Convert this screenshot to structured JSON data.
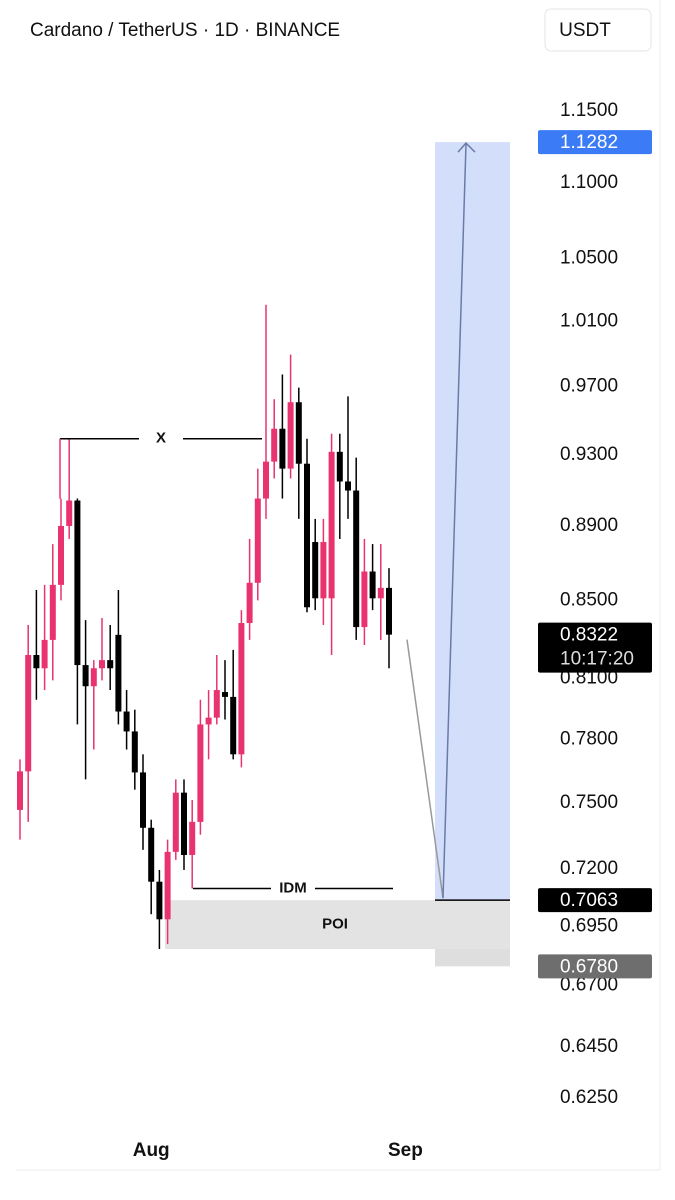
{
  "chart_data": {
    "type": "candlestick",
    "title": "Cardano / TetherUS · 1D · BINANCE",
    "quote_button": "USDT",
    "log_scale": true,
    "categories": [
      null,
      null,
      null,
      null,
      null,
      null,
      null,
      null,
      null,
      null,
      null,
      null,
      null,
      null,
      null,
      null,
      "Aug",
      null,
      null,
      null,
      null,
      null,
      null,
      null,
      null,
      null,
      null,
      null,
      null,
      null,
      null,
      null,
      null,
      null,
      null,
      null,
      null,
      null,
      null,
      null,
      null,
      null,
      null,
      null,
      null,
      null,
      null,
      "Sep"
    ],
    "up_color": "#e8336f",
    "down_color": "#000000",
    "candles": [
      [
        0.7468,
        0.7705,
        0.7332,
        0.7648
      ],
      [
        0.7648,
        0.8372,
        0.7413,
        0.8218
      ],
      [
        0.8218,
        0.8555,
        0.7994,
        0.8151
      ],
      [
        0.8151,
        0.8582,
        0.8042,
        0.8295
      ],
      [
        0.8295,
        0.8801,
        0.809,
        0.8582
      ],
      [
        0.8582,
        0.9052,
        0.85,
        0.89
      ],
      [
        0.89,
        0.9393,
        0.8829,
        0.9041
      ],
      [
        0.9041,
        0.9052,
        0.7873,
        0.8167
      ],
      [
        0.8167,
        0.8397,
        0.761,
        0.8061
      ],
      [
        0.8061,
        0.8192,
        0.7752,
        0.8151
      ],
      [
        0.8151,
        0.8408,
        0.809,
        0.8192
      ],
      [
        0.8192,
        0.8372,
        0.8042,
        0.8151
      ],
      [
        0.8321,
        0.8555,
        0.7873,
        0.7936
      ],
      [
        0.7936,
        0.8042,
        0.7752,
        0.7839
      ],
      [
        0.7839,
        0.7945,
        0.7562,
        0.7643
      ],
      [
        0.7643,
        0.7729,
        0.7286,
        0.7386
      ],
      [
        0.7386,
        0.7423,
        0.7002,
        0.7144
      ],
      [
        0.7144,
        0.7196,
        0.6853,
        0.698
      ],
      [
        0.698,
        0.7332,
        0.6874,
        0.7277
      ],
      [
        0.7277,
        0.761,
        0.7241,
        0.7548
      ],
      [
        0.7548,
        0.761,
        0.7196,
        0.7263
      ],
      [
        0.7263,
        0.7514,
        0.7114,
        0.7413
      ],
      [
        0.7413,
        0.7994,
        0.7354,
        0.7873
      ],
      [
        0.7873,
        0.8042,
        0.7705,
        0.7906
      ],
      [
        0.7906,
        0.8218,
        0.7873,
        0.8042
      ],
      [
        0.8032,
        0.8192,
        0.7897,
        0.8008
      ],
      [
        0.8008,
        0.8244,
        0.7705,
        0.7729
      ],
      [
        0.7729,
        0.8449,
        0.7667,
        0.8382
      ],
      [
        0.8382,
        0.8829,
        0.8295,
        0.8593
      ],
      [
        0.8593,
        0.9221,
        0.85,
        0.9052
      ],
      [
        0.9052,
        1.0203,
        0.8939,
        0.9261
      ],
      [
        0.9261,
        0.9625,
        0.9165,
        0.9451
      ],
      [
        0.9451,
        0.9773,
        0.9052,
        0.9221
      ],
      [
        0.9221,
        0.9894,
        0.9165,
        0.9607
      ],
      [
        0.9607,
        0.9694,
        0.8939,
        0.9249
      ],
      [
        0.9249,
        0.9393,
        0.8438,
        0.8464
      ],
      [
        0.8812,
        0.8939,
        0.8449,
        0.8511
      ],
      [
        0.8511,
        0.8939,
        0.8372,
        0.8812
      ],
      [
        0.8511,
        0.9422,
        0.8218,
        0.9317
      ],
      [
        0.9317,
        0.9422,
        0.8829,
        0.9148
      ],
      [
        0.9148,
        0.9642,
        0.8939,
        0.9097
      ],
      [
        0.9097,
        0.9284,
        0.8295,
        0.8361
      ],
      [
        0.8361,
        0.8829,
        0.8269,
        0.8653
      ],
      [
        0.8653,
        0.8801,
        0.8449,
        0.8511
      ],
      [
        0.8511,
        0.8801,
        0.8295,
        0.8566
      ],
      [
        0.8566,
        0.8671,
        0.8151,
        0.8322
      ],
      null,
      null
    ],
    "ylim": [
      0.6128,
      1.1869
    ],
    "yticks": [
      {
        "value": 1.15,
        "label": "1.1500"
      },
      {
        "value": 1.1,
        "label": "1.1000"
      },
      {
        "value": 1.05,
        "label": "1.0500"
      },
      {
        "value": 1.01,
        "label": "1.0100"
      },
      {
        "value": 0.97,
        "label": "0.9700"
      },
      {
        "value": 0.93,
        "label": "0.9300"
      },
      {
        "value": 0.89,
        "label": "0.8900"
      },
      {
        "value": 0.85,
        "label": "0.8500"
      },
      {
        "value": 0.81,
        "label": "0.8100"
      },
      {
        "value": 0.78,
        "label": "0.7800"
      },
      {
        "value": 0.75,
        "label": "0.7500"
      },
      {
        "value": 0.72,
        "label": "0.7200"
      },
      {
        "value": 0.695,
        "label": "0.6950"
      },
      {
        "value": 0.67,
        "label": "0.6700"
      },
      {
        "value": 0.645,
        "label": "0.6450"
      },
      {
        "value": 0.625,
        "label": "0.6250"
      }
    ],
    "price_tags": [
      {
        "value": 1.1282,
        "label": "1.1282",
        "color": "#3b7bf5"
      },
      {
        "value": 0.8322,
        "label": "0.8322",
        "countdown": "10:17:20",
        "color": "#000000"
      },
      {
        "value": 0.7063,
        "label": "0.7063",
        "color": "#000000"
      },
      {
        "value": 0.678,
        "label": "0.6780",
        "color": "#6e6e6e"
      }
    ],
    "levels": [
      {
        "label": "X",
        "value": 0.9393
      },
      {
        "label": "IDM",
        "value": 0.7114
      }
    ],
    "zones": [
      {
        "name": "target",
        "top": 1.1282,
        "bottom": 0.7063,
        "color": "#d3defb"
      },
      {
        "name": "stop",
        "top": 0.7063,
        "bottom": 0.678,
        "color": "#dedede"
      },
      {
        "label": "POI",
        "top": 0.7063,
        "bottom": 0.6853,
        "color": "#e3e3e3"
      }
    ]
  }
}
